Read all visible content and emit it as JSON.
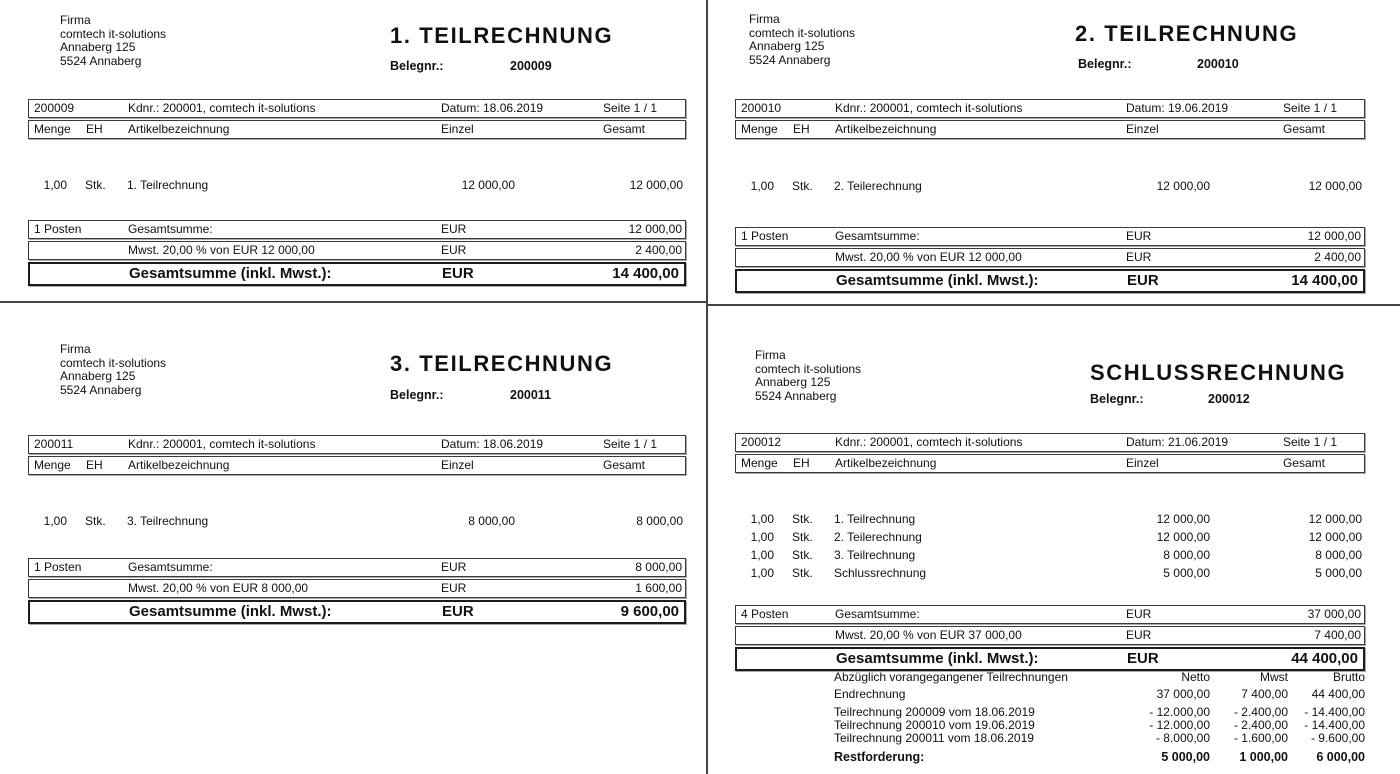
{
  "columns": {
    "menge": "Menge",
    "eh": "EH",
    "artikel": "Artikelbezeichnung",
    "einzel": "Einzel",
    "gesamt": "Gesamt"
  },
  "invoices": [
    {
      "sender": [
        "Firma",
        "comtech it-solutions",
        "Annaberg 125",
        "5524 Annaberg"
      ],
      "title": "1. TEILRECHNUNG",
      "beleg_label": "Belegnr.:",
      "beleg_value": "200009",
      "info": {
        "doc_no": "200009",
        "kdnr": "Kdnr.: 200001, comtech it-solutions",
        "datum": "Datum: 18.06.2019",
        "seite": "Seite 1 / 1"
      },
      "items": [
        {
          "qty": "1,00",
          "unit": "Stk.",
          "name": "1. Teilrechnung",
          "einzel": "12 000,00",
          "gesamt": "12 000,00"
        }
      ],
      "summary": {
        "posten": "1 Posten",
        "total_label": "Gesamtsumme:",
        "total_cur": "EUR",
        "total": "12 000,00",
        "vat_label": "Mwst. 20,00 % von EUR 12 000,00",
        "vat_cur": "EUR",
        "vat": "2 400,00",
        "grand_label": "Gesamtsumme (inkl. Mwst.):",
        "grand_cur": "EUR",
        "grand": "14 400,00"
      }
    },
    {
      "sender": [
        "Firma",
        "comtech it-solutions",
        "Annaberg 125",
        "5524 Annaberg"
      ],
      "title": "2. TEILRECHNUNG",
      "beleg_label": "Belegnr.:",
      "beleg_value": "200010",
      "info": {
        "doc_no": "200010",
        "kdnr": "Kdnr.: 200001, comtech it-solutions",
        "datum": "Datum: 19.06.2019",
        "seite": "Seite 1 / 1"
      },
      "items": [
        {
          "qty": "1,00",
          "unit": "Stk.",
          "name": "2. Teilerechnung",
          "einzel": "12 000,00",
          "gesamt": "12 000,00"
        }
      ],
      "summary": {
        "posten": "1 Posten",
        "total_label": "Gesamtsumme:",
        "total_cur": "EUR",
        "total": "12 000,00",
        "vat_label": "Mwst. 20,00 % von EUR 12 000,00",
        "vat_cur": "EUR",
        "vat": "2 400,00",
        "grand_label": "Gesamtsumme (inkl. Mwst.):",
        "grand_cur": "EUR",
        "grand": "14 400,00"
      }
    },
    {
      "sender": [
        "Firma",
        "comtech it-solutions",
        "Annaberg 125",
        "5524 Annaberg"
      ],
      "title": "3. TEILRECHNUNG",
      "beleg_label": "Belegnr.:",
      "beleg_value": "200011",
      "info": {
        "doc_no": "200011",
        "kdnr": "Kdnr.: 200001, comtech it-solutions",
        "datum": "Datum: 18.06.2019",
        "seite": "Seite 1 / 1"
      },
      "items": [
        {
          "qty": "1,00",
          "unit": "Stk.",
          "name": "3. Teilrechnung",
          "einzel": "8 000,00",
          "gesamt": "8 000,00"
        }
      ],
      "summary": {
        "posten": "1 Posten",
        "total_label": "Gesamtsumme:",
        "total_cur": "EUR",
        "total": "8 000,00",
        "vat_label": "Mwst. 20,00 % von EUR 8 000,00",
        "vat_cur": "EUR",
        "vat": "1 600,00",
        "grand_label": "Gesamtsumme (inkl. Mwst.):",
        "grand_cur": "EUR",
        "grand": "9 600,00"
      }
    },
    {
      "sender": [
        "Firma",
        "comtech it-solutions",
        "Annaberg 125",
        "5524 Annaberg"
      ],
      "title": "SCHLUSSRECHNUNG",
      "beleg_label": "Belegnr.:",
      "beleg_value": "200012",
      "info": {
        "doc_no": "200012",
        "kdnr": "Kdnr.: 200001, comtech it-solutions",
        "datum": "Datum: 21.06.2019",
        "seite": "Seite 1 / 1"
      },
      "items": [
        {
          "qty": "1,00",
          "unit": "Stk.",
          "name": "1. Teilrechnung",
          "einzel": "12 000,00",
          "gesamt": "12 000,00"
        },
        {
          "qty": "1,00",
          "unit": "Stk.",
          "name": "2. Teilerechnung",
          "einzel": "12 000,00",
          "gesamt": "12 000,00"
        },
        {
          "qty": "1,00",
          "unit": "Stk.",
          "name": "3. Teilrechnung",
          "einzel": "8 000,00",
          "gesamt": "8 000,00"
        },
        {
          "qty": "1,00",
          "unit": "Stk.",
          "name": "Schlussrechnung",
          "einzel": "5 000,00",
          "gesamt": "5 000,00"
        }
      ],
      "summary": {
        "posten": "4 Posten",
        "total_label": "Gesamtsumme:",
        "total_cur": "EUR",
        "total": "37 000,00",
        "vat_label": "Mwst. 20,00 % von EUR 37 000,00",
        "vat_cur": "EUR",
        "vat": "7 400,00",
        "grand_label": "Gesamtsumme (inkl. Mwst.):",
        "grand_cur": "EUR",
        "grand": "44 400,00"
      },
      "deduction": {
        "header": "Abzüglich vorangegangener Teilrechnungen",
        "col_netto": "Netto",
        "col_mwst": "Mwst",
        "col_brutto": "Brutto",
        "rows": [
          {
            "label": "Endrechnung",
            "netto": "37 000,00",
            "mwst": "7 400,00",
            "brutto": "44 400,00"
          },
          {
            "label": "Teilrechnung 200009 vom 18.06.2019",
            "netto": "- 12.000,00",
            "mwst": "- 2.400,00",
            "brutto": "- 14.400,00"
          },
          {
            "label": "Teilrechnung 200010 vom 19.06.2019",
            "netto": "- 12.000,00",
            "mwst": "- 2.400,00",
            "brutto": "- 14.400,00"
          },
          {
            "label": "Teilrechnung 200011 vom 18.06.2019",
            "netto": "- 8.000,00",
            "mwst": "- 1.600,00",
            "brutto": "- 9.600,00"
          },
          {
            "label": "Restforderung:",
            "netto": "5 000,00",
            "mwst": "1 000,00",
            "brutto": "6 000,00"
          }
        ]
      }
    }
  ]
}
